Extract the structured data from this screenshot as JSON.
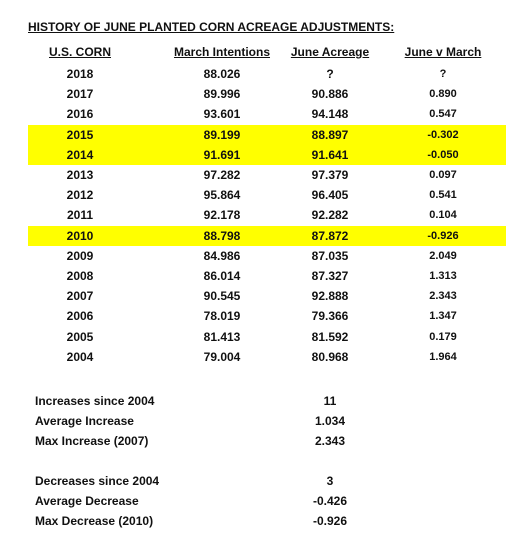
{
  "title": "HISTORY OF JUNE PLANTED CORN ACREAGE ADJUSTMENTS:",
  "table": {
    "header": [
      "U.S. CORN",
      "March Intentions",
      "June Acreage",
      "June v March"
    ],
    "rows": [
      {
        "year": "2018",
        "march": "88.026",
        "june": "?",
        "diff": "?",
        "highlight": false
      },
      {
        "year": "2017",
        "march": "89.996",
        "june": "90.886",
        "diff": "0.890",
        "highlight": false
      },
      {
        "year": "2016",
        "march": "93.601",
        "june": "94.148",
        "diff": "0.547",
        "highlight": false
      },
      {
        "year": "2015",
        "march": "89.199",
        "june": "88.897",
        "diff": "-0.302",
        "highlight": true
      },
      {
        "year": "2014",
        "march": "91.691",
        "june": "91.641",
        "diff": "-0.050",
        "highlight": true
      },
      {
        "year": "2013",
        "march": "97.282",
        "june": "97.379",
        "diff": "0.097",
        "highlight": false
      },
      {
        "year": "2012",
        "march": "95.864",
        "june": "96.405",
        "diff": "0.541",
        "highlight": false
      },
      {
        "year": "2011",
        "march": "92.178",
        "june": "92.282",
        "diff": "0.104",
        "highlight": false
      },
      {
        "year": "2010",
        "march": "88.798",
        "june": "87.872",
        "diff": "-0.926",
        "highlight": true
      },
      {
        "year": "2009",
        "march": "84.986",
        "june": "87.035",
        "diff": "2.049",
        "highlight": false
      },
      {
        "year": "2008",
        "march": "86.014",
        "june": "87.327",
        "diff": "1.313",
        "highlight": false
      },
      {
        "year": "2007",
        "march": "90.545",
        "june": "92.888",
        "diff": "2.343",
        "highlight": false
      },
      {
        "year": "2006",
        "march": "78.019",
        "june": "79.366",
        "diff": "1.347",
        "highlight": false
      },
      {
        "year": "2005",
        "march": "81.413",
        "june": "81.592",
        "diff": "0.179",
        "highlight": false
      },
      {
        "year": "2004",
        "march": "79.004",
        "june": "80.968",
        "diff": "1.964",
        "highlight": false
      }
    ]
  },
  "summary": [
    [
      {
        "label": "Increases since 2004",
        "value": "11"
      },
      {
        "label": "Average Increase",
        "value": "1.034"
      },
      {
        "label": "Max Increase (2007)",
        "value": "2.343"
      }
    ],
    [
      {
        "label": "Decreases since 2004",
        "value": "3"
      },
      {
        "label": "Average Decrease",
        "value": "-0.426"
      },
      {
        "label": "Max Decrease (2010)",
        "value": "-0.926"
      }
    ]
  ]
}
